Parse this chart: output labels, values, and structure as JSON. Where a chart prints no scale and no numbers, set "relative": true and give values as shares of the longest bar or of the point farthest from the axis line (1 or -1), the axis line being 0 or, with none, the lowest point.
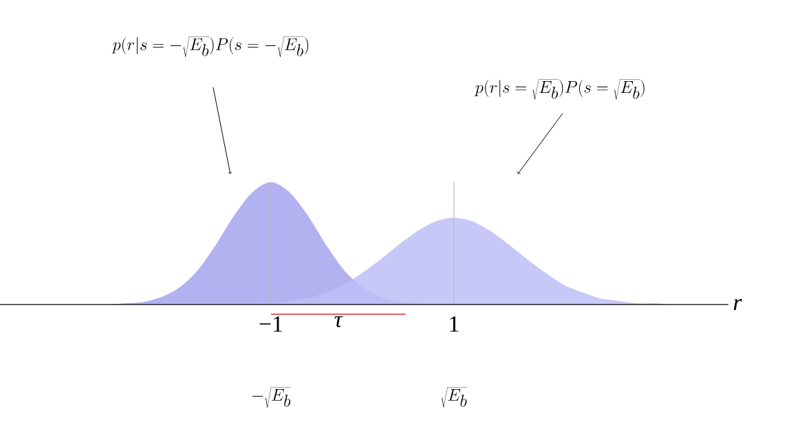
{
  "chart_data": {
    "type": "area",
    "relative": true,
    "x": [
      -4,
      -3.8,
      -3.6,
      -3.4,
      -3.2,
      -3,
      -2.8,
      -2.6,
      -2.4,
      -2.2,
      -2,
      -1.8,
      -1.6,
      -1.4,
      -1.2,
      -1,
      -0.8,
      -0.6,
      -0.4,
      -0.2,
      0,
      0.2,
      0.4,
      0.6,
      0.8,
      1,
      1.2,
      1.4,
      1.6,
      1.8,
      2,
      2.2,
      2.4,
      2.6,
      2.8,
      3,
      3.2,
      3.4,
      3.6,
      3.8,
      4
    ],
    "series": [
      {
        "color": "#a5a5ef",
        "values": [
          0,
          0,
          0,
          0,
          0,
          0,
          0,
          0.01,
          0.02,
          0.06,
          0.14,
          0.28,
          0.49,
          0.73,
          0.92,
          1,
          0.92,
          0.73,
          0.49,
          0.28,
          0.14,
          0.06,
          0.02,
          0.01,
          0,
          0,
          0,
          0,
          0,
          0,
          0,
          0,
          0,
          0,
          0,
          0,
          0,
          0,
          0,
          0,
          0
        ]
      },
      {
        "color": "#bdbdf7",
        "values": [
          0,
          0,
          0,
          0,
          0,
          0,
          0,
          0,
          0,
          0,
          0,
          0,
          0,
          0,
          0.01,
          0.01,
          0.03,
          0.05,
          0.1,
          0.16,
          0.26,
          0.37,
          0.49,
          0.6,
          0.68,
          0.71,
          0.68,
          0.6,
          0.49,
          0.37,
          0.26,
          0.16,
          0.1,
          0.05,
          0.03,
          0.01,
          0.01,
          0,
          0,
          0,
          0
        ]
      }
    ],
    "xlim": [
      -4,
      4
    ],
    "xticks": [
      {
        "value": -1,
        "label": "−1"
      },
      1
    ],
    "xlabel": "r",
    "ref_lines": [
      {
        "axis": "x",
        "value": -1,
        "color": "#bbbbbb"
      },
      {
        "axis": "x",
        "value": 1,
        "color": "#bbbbbb"
      }
    ],
    "annotations": [
      "p(r|s=-\\sqrt{E_b})P(s=-\\sqrt{E_b})",
      "p(r|s=\\sqrt{E_b})P(s=\\sqrt{E_b})",
      "τ",
      "-\\sqrt{E_b}",
      "\\sqrt{E_b}"
    ]
  }
}
